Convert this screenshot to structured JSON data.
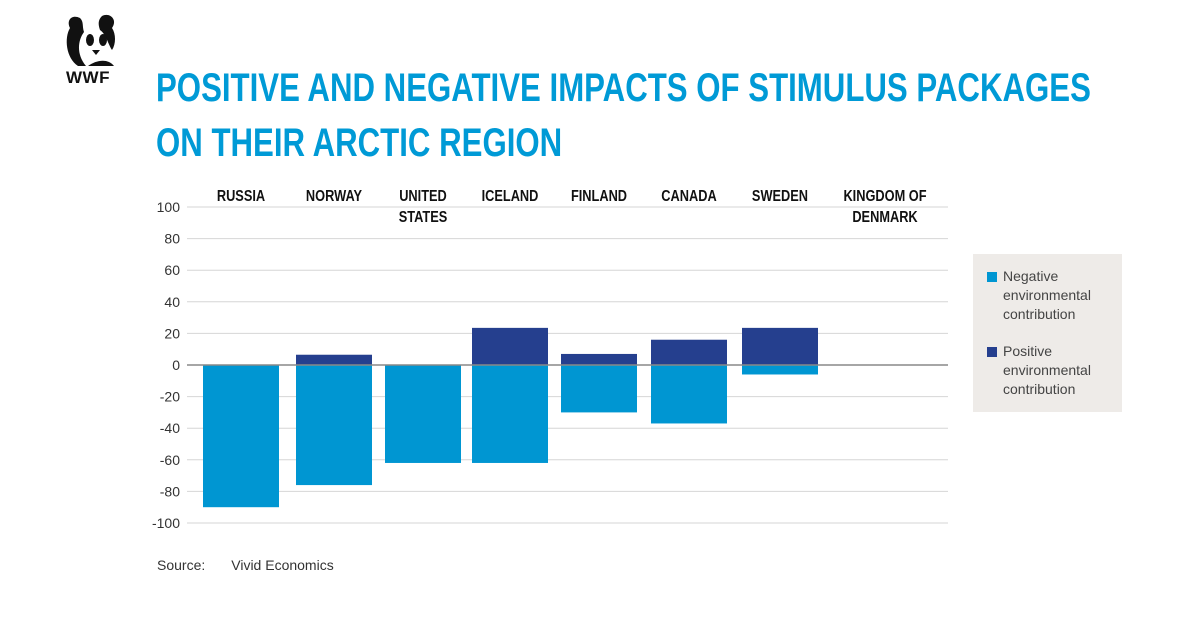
{
  "logo": {
    "text": "WWF"
  },
  "title_lines": [
    "POSITIVE AND NEGATIVE IMPACTS OF STIMULUS PACKAGES",
    "ON THEIR ARCTIC REGION"
  ],
  "source": {
    "label": "Source:",
    "value": "Vivid Economics"
  },
  "colors": {
    "negative": "#0096d2",
    "positive": "#253f8e",
    "title": "#009ad6"
  },
  "chart_data": {
    "type": "bar",
    "stacked": true,
    "title": "POSITIVE AND NEGATIVE IMPACTS OF STIMULUS PACKAGES ON THEIR ARCTIC REGION",
    "categories": [
      "RUSSIA",
      "NORWAY",
      "UNITED STATES",
      "ICELAND",
      "FINLAND",
      "CANADA",
      "SWEDEN",
      "KINGDOM OF DENMARK"
    ],
    "category_lines": [
      [
        "RUSSIA"
      ],
      [
        "NORWAY"
      ],
      [
        "UNITED",
        "STATES"
      ],
      [
        "ICELAND"
      ],
      [
        "FINLAND"
      ],
      [
        "CANADA"
      ],
      [
        "SWEDEN"
      ],
      [
        "KINGDOM OF",
        "DENMARK"
      ]
    ],
    "series": [
      {
        "name": "Negative environmental contribution",
        "legend_lines": [
          "Negative",
          "environmental",
          "contribution"
        ],
        "values": [
          -90,
          -76,
          -62,
          -62,
          -30,
          -37,
          -6,
          0
        ]
      },
      {
        "name": "Positive environmental contribution",
        "legend_lines": [
          "Positive",
          "environmental",
          "contribution"
        ],
        "values": [
          0,
          6.5,
          0,
          23.5,
          7,
          16,
          23.5,
          0
        ]
      }
    ],
    "yticks": [
      100,
      80,
      60,
      40,
      20,
      0,
      -20,
      -40,
      -60,
      -80,
      -100
    ],
    "ylim": [
      -100,
      100
    ],
    "xlabel": "",
    "ylabel": "",
    "grid": true,
    "legend_position": "right"
  }
}
